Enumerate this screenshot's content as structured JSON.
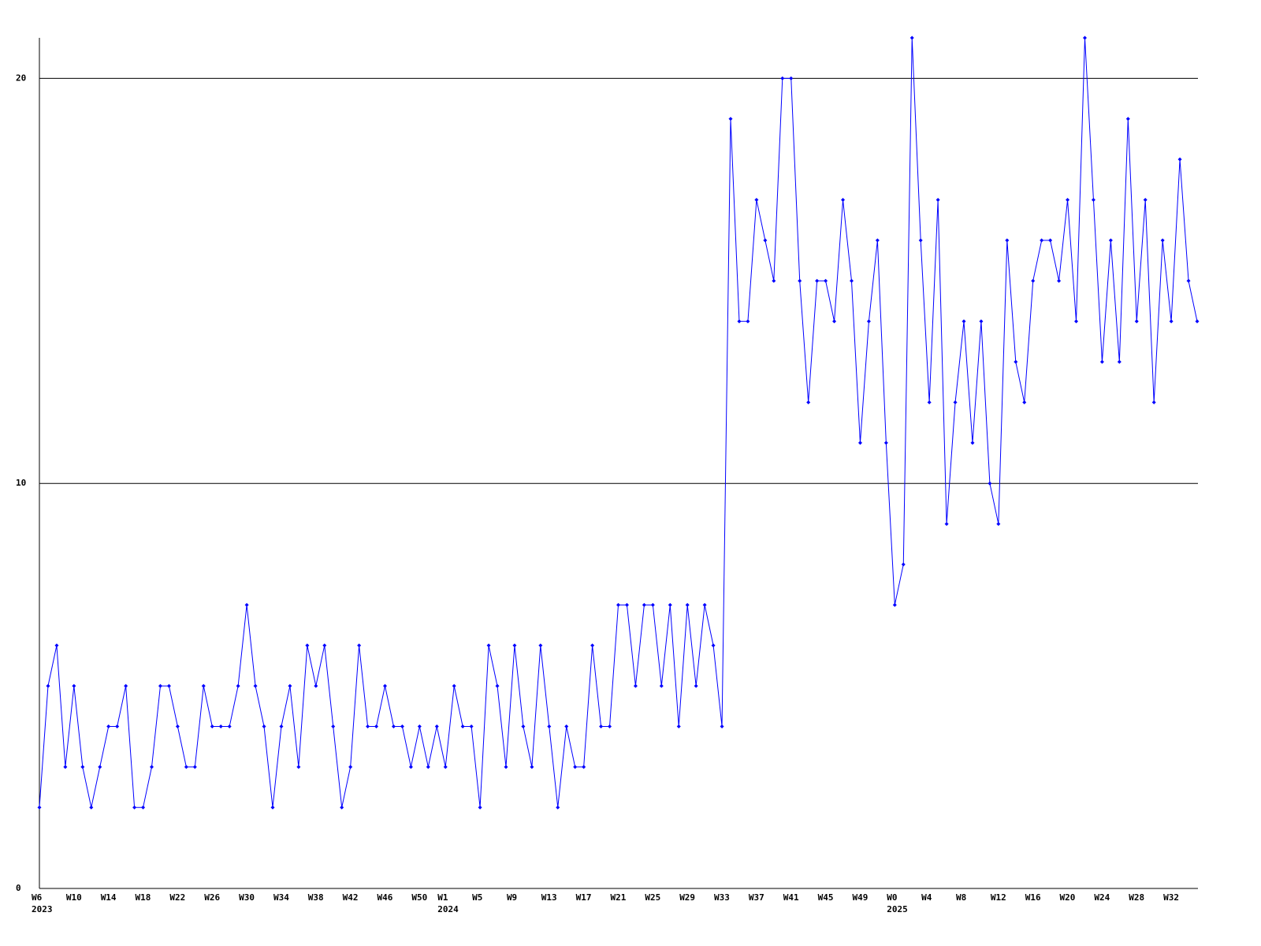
{
  "chart_data": {
    "type": "line",
    "categories": [
      "W6",
      null,
      null,
      null,
      "W10",
      null,
      null,
      null,
      "W14",
      null,
      null,
      null,
      "W18",
      null,
      null,
      null,
      "W22",
      null,
      null,
      null,
      "W26",
      null,
      null,
      null,
      "W30",
      null,
      null,
      null,
      "W34",
      null,
      null,
      null,
      "W38",
      null,
      null,
      null,
      "W42",
      null,
      null,
      null,
      "W46",
      null,
      null,
      null,
      "W50",
      null,
      null,
      "W1",
      null,
      null,
      null,
      "W5",
      null,
      null,
      null,
      "W9",
      null,
      null,
      null,
      "W13",
      null,
      null,
      null,
      "W17",
      null,
      null,
      null,
      "W21",
      null,
      null,
      null,
      "W25",
      null,
      null,
      null,
      "W29",
      null,
      null,
      null,
      "W33",
      null,
      null,
      null,
      "W37",
      null,
      null,
      null,
      "W41",
      null,
      null,
      null,
      "W45",
      null,
      null,
      null,
      "W49",
      null,
      null,
      null,
      "W0",
      null,
      null,
      null,
      "W4",
      null,
      null,
      null,
      "W8",
      null,
      null,
      null,
      "W12",
      null,
      null,
      null,
      "W16",
      null,
      null,
      null,
      "W20",
      null,
      null,
      null,
      "W24",
      null,
      null,
      null,
      "W28",
      null,
      null,
      null,
      "W32",
      null,
      null,
      null
    ],
    "year_labels": [
      {
        "index": 0,
        "label": "2023"
      },
      {
        "index": 47,
        "label": "2024"
      },
      {
        "index": 99,
        "label": "2025"
      }
    ],
    "series": [
      {
        "color": "#0000ff",
        "values": [
          2,
          5,
          6,
          3,
          5,
          3,
          2,
          3,
          4,
          4,
          5,
          2,
          2,
          3,
          5,
          5,
          4,
          3,
          3,
          5,
          4,
          4,
          4,
          5,
          7,
          5,
          4,
          2,
          4,
          5,
          3,
          6,
          5,
          6,
          4,
          2,
          3,
          6,
          4,
          4,
          5,
          4,
          4,
          3,
          4,
          3,
          4,
          3,
          5,
          4,
          4,
          2,
          6,
          5,
          3,
          6,
          4,
          3,
          6,
          4,
          2,
          4,
          3,
          3,
          6,
          4,
          4,
          7,
          7,
          5,
          7,
          7,
          5,
          7,
          4,
          7,
          5,
          7,
          6,
          4,
          19,
          14,
          14,
          17,
          16,
          15,
          20,
          20,
          15,
          12,
          15,
          15,
          14,
          17,
          15,
          11,
          14,
          16,
          11,
          7,
          8,
          21,
          16,
          12,
          17,
          9,
          12,
          14,
          11,
          14,
          10,
          9,
          16,
          13,
          12,
          15,
          16,
          16,
          15,
          17,
          14,
          21,
          17,
          13,
          16,
          13,
          19,
          14,
          17,
          12,
          16,
          14,
          18,
          15,
          14
        ]
      }
    ],
    "ylim": [
      0,
      21
    ],
    "yticks": [
      0,
      10,
      20
    ],
    "grid": true
  }
}
